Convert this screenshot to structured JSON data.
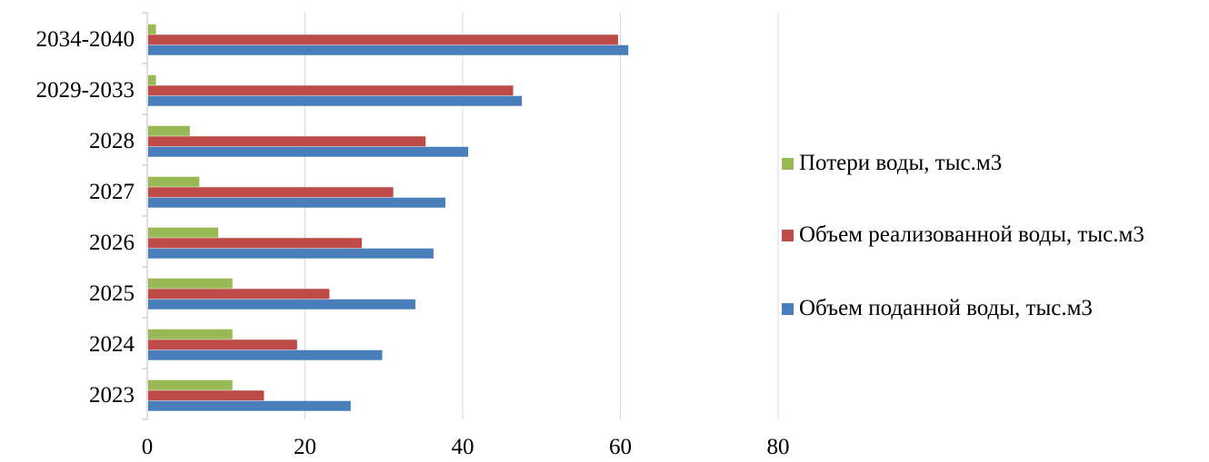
{
  "chart_data": {
    "type": "bar",
    "orientation": "horizontal",
    "categories": [
      "2023",
      "2024",
      "2025",
      "2026",
      "2027",
      "2028",
      "2029-2033",
      "2034-2040"
    ],
    "series": [
      {
        "name": "Объем поданной воды, тыс.м3",
        "color": "#4a7ebb",
        "values": [
          25.8,
          29.8,
          34.0,
          36.3,
          37.8,
          40.7,
          47.5,
          61.0
        ]
      },
      {
        "name": "Объем реализованной воды, тыс.м3",
        "color": "#be4b48",
        "values": [
          14.8,
          19.0,
          23.1,
          27.2,
          31.2,
          35.3,
          46.4,
          59.7
        ]
      },
      {
        "name": "Потери воды, тыс.м3",
        "color": "#98b954",
        "values": [
          10.8,
          10.8,
          10.8,
          9.0,
          6.6,
          5.4,
          1.1,
          1.1
        ]
      }
    ],
    "legend_order": [
      "Потери воды, тыс.м3",
      "Объем реализованной воды, тыс.м3",
      "Объем поданной воды, тыс.м3"
    ],
    "xlim": [
      0,
      80
    ],
    "x_ticks": [
      "0",
      "20",
      "40",
      "60",
      "80"
    ],
    "grid": "vertical",
    "legend_position": "right",
    "title": "",
    "xlabel": "",
    "ylabel": ""
  }
}
